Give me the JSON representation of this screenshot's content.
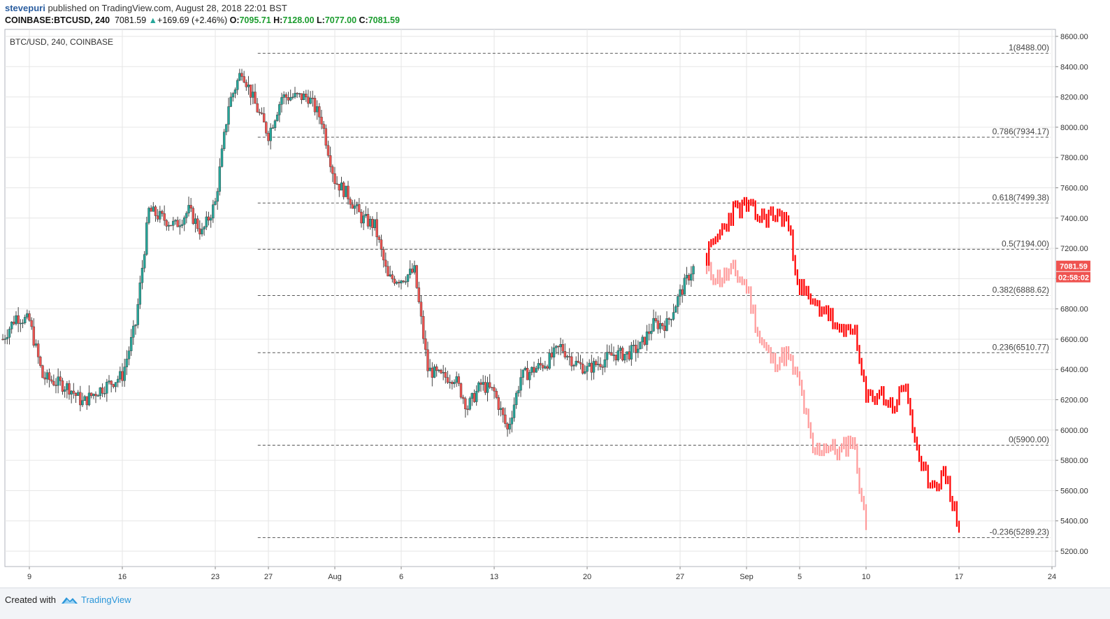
{
  "header": {
    "user": "stevepuri",
    "published": "published on TradingView.com, August 28, 2018 22:01 BST",
    "symbol": "COINBASE:BTCUSD, 240",
    "price": "7081.59",
    "change_arrow": "▲",
    "change": "+169.69 (+2.46%)",
    "o_label": "O:",
    "o_value": "7095.71",
    "h_label": "H:",
    "h_value": "7128.00",
    "l_label": "L:",
    "l_value": "7077.00",
    "c_label": "C:",
    "c_value": "7081.59"
  },
  "footer": {
    "created_with": "Created with",
    "brand": "TradingView"
  },
  "colors": {
    "up": "#26a69a",
    "down": "#ef5350",
    "projection": "#ff0000",
    "projection_faded": "#ff9a9a",
    "grid": "#e6e6e6",
    "price_tag": "#ef5350"
  },
  "chart_data": {
    "type": "candlestick",
    "title": "BTC/USD, 240, COINBASE",
    "x_ticks": [
      "9",
      "16",
      "23",
      "27",
      "Aug",
      "6",
      "13",
      "20",
      "27",
      "Sep",
      "5",
      "10",
      "17",
      "24"
    ],
    "y_ticks": [
      "8600.00",
      "8400.00",
      "8200.00",
      "8000.00",
      "7800.00",
      "7600.00",
      "7400.00",
      "7200.00",
      "7000.00",
      "6800.00",
      "6600.00",
      "6400.00",
      "6200.00",
      "6000.00",
      "5800.00",
      "5600.00",
      "5400.00",
      "5200.00"
    ],
    "ylim": [
      5150,
      8630
    ],
    "grid": true,
    "current_price": "7081.59",
    "countdown": "02:58:02",
    "fib_levels": [
      {
        "label": "1(8488.00)",
        "value": 8488.0
      },
      {
        "label": "0.786(7934.17)",
        "value": 7934.17
      },
      {
        "label": "0.618(7499.38)",
        "value": 7499.38
      },
      {
        "label": "0.5(7194.00)",
        "value": 7194.0
      },
      {
        "label": "0.382(6888.62)",
        "value": 6888.62
      },
      {
        "label": "0.236(6510.77)",
        "value": 6510.77
      },
      {
        "label": "0(5900.00)",
        "value": 5900.0
      },
      {
        "label": "-0.236(5289.23)",
        "value": 5289.23
      }
    ],
    "price_path": [
      [
        "Jul 7",
        6600
      ],
      [
        "Jul 8",
        6750
      ],
      [
        "Jul 9",
        6720
      ],
      [
        "Jul 10",
        6350
      ],
      [
        "Jul 12",
        6280
      ],
      [
        "Jul 13",
        6180
      ],
      [
        "Jul 14",
        6250
      ],
      [
        "Jul 16",
        6360
      ],
      [
        "Jul 17",
        6700
      ],
      [
        "Jul 18",
        7450
      ],
      [
        "Jul 20",
        7350
      ],
      [
        "Jul 21",
        7450
      ],
      [
        "Jul 22",
        7300
      ],
      [
        "Jul 23",
        7500
      ],
      [
        "Jul 24",
        8150
      ],
      [
        "Jul 25",
        8380
      ],
      [
        "Jul 26",
        8150
      ],
      [
        "Jul 27",
        7950
      ],
      [
        "Jul 28",
        8200
      ],
      [
        "Jul 30",
        8200
      ],
      [
        "Jul 31",
        8050
      ],
      [
        "Aug 1",
        7650
      ],
      [
        "Aug 2",
        7550
      ],
      [
        "Aug 3",
        7400
      ],
      [
        "Aug 4",
        7350
      ],
      [
        "Aug 5",
        7000
      ],
      [
        "Aug 6",
        7000
      ],
      [
        "Aug 7",
        7050
      ],
      [
        "Aug 8",
        6400
      ],
      [
        "Aug 9",
        6350
      ],
      [
        "Aug 10",
        6350
      ],
      [
        "Aug 11",
        6150
      ],
      [
        "Aug 12",
        6300
      ],
      [
        "Aug 13",
        6250
      ],
      [
        "Aug 14",
        6000
      ],
      [
        "Aug 15",
        6350
      ],
      [
        "Aug 16",
        6400
      ],
      [
        "Aug 17",
        6450
      ],
      [
        "Aug 18",
        6550
      ],
      [
        "Aug 19",
        6450
      ],
      [
        "Aug 20",
        6400
      ],
      [
        "Aug 21",
        6450
      ],
      [
        "Aug 22",
        6500
      ],
      [
        "Aug 23",
        6500
      ],
      [
        "Aug 24",
        6550
      ],
      [
        "Aug 25",
        6700
      ],
      [
        "Aug 26",
        6700
      ],
      [
        "Aug 27",
        6900
      ],
      [
        "Aug 28",
        7081.59
      ]
    ],
    "projection": [
      [
        "Aug 29",
        7150
      ],
      [
        "Aug 30",
        7300
      ],
      [
        "Aug 31",
        7450
      ],
      [
        "Sep 1",
        7480
      ],
      [
        "Sep 2",
        7400
      ],
      [
        "Sep 3",
        7420
      ],
      [
        "Sep 4",
        7400
      ],
      [
        "Sep 5",
        6950
      ],
      [
        "Sep 6",
        6820
      ],
      [
        "Sep 7",
        6800
      ],
      [
        "Sep 8",
        6620
      ],
      [
        "Sep 9",
        6700
      ],
      [
        "Sep 10",
        6200
      ],
      [
        "Sep 11",
        6250
      ],
      [
        "Sep 12",
        6150
      ],
      [
        "Sep 13",
        6300
      ],
      [
        "Sep 14",
        5750
      ],
      [
        "Sep 15",
        5650
      ],
      [
        "Sep 16",
        5700
      ],
      [
        "Sep 17",
        5350
      ]
    ],
    "projection_faded": [
      [
        "Aug 29",
        7050
      ],
      [
        "Aug 30",
        7000
      ],
      [
        "Aug 31",
        7050
      ],
      [
        "Sep 1",
        6950
      ],
      [
        "Sep 2",
        6600
      ],
      [
        "Sep 3",
        6450
      ],
      [
        "Sep 4",
        6500
      ],
      [
        "Sep 5",
        6300
      ],
      [
        "Sep 6",
        5850
      ],
      [
        "Sep 7",
        5900
      ],
      [
        "Sep 8",
        5850
      ],
      [
        "Sep 9",
        5950
      ],
      [
        "Sep 10",
        5350
      ]
    ]
  }
}
